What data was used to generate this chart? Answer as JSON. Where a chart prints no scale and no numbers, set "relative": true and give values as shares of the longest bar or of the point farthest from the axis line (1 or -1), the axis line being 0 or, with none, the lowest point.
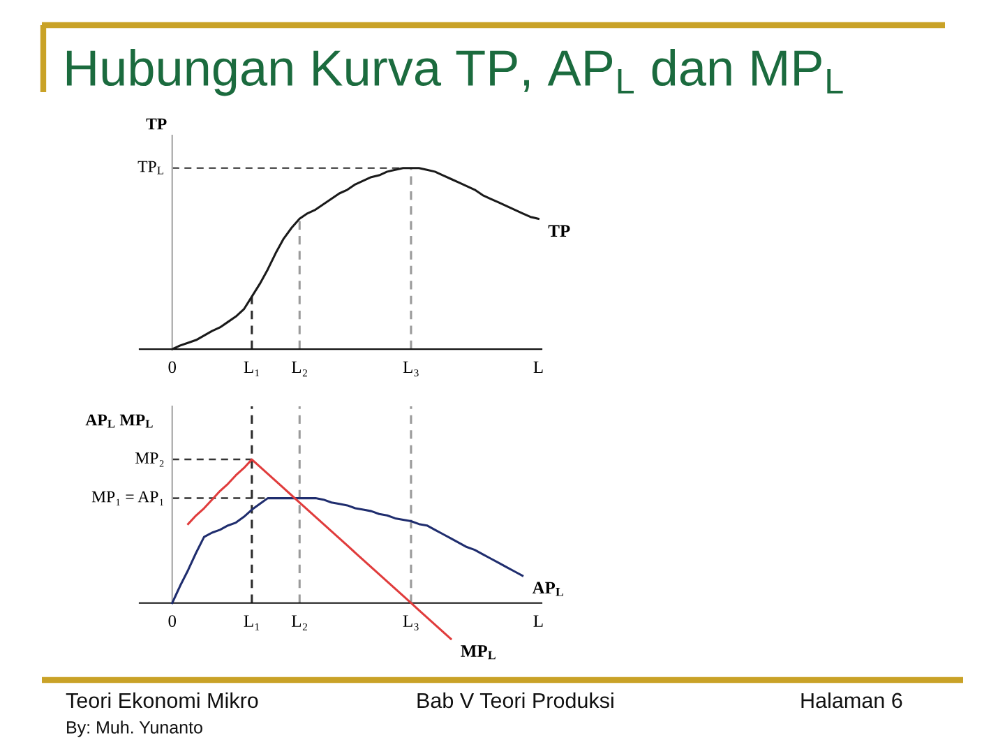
{
  "chart_data": [
    {
      "type": "line",
      "relative": true,
      "title": "Hubungan Kurva TP, AP$_{L}$ dan MP$_{L}$",
      "ylabel": "TP",
      "categories": [
        "0",
        null,
        null,
        null,
        null,
        null,
        null,
        null,
        null,
        null,
        "L₁",
        null,
        null,
        null,
        null,
        null,
        "L₂",
        null,
        null,
        null,
        null,
        null,
        null,
        null,
        null,
        null,
        null,
        null,
        null,
        null,
        "L₃",
        null,
        null,
        null,
        null,
        null,
        null,
        null,
        null,
        null,
        null,
        null,
        null,
        null,
        null,
        null,
        "L"
      ],
      "series": [
        {
          "name": "TP",
          "color": "#1a1a1a",
          "values": [
            0,
            0.02,
            0.035,
            0.05,
            0.075,
            0.1,
            0.12,
            0.15,
            0.18,
            0.22,
            0.29,
            0.36,
            0.44,
            0.53,
            0.61,
            0.67,
            0.72,
            0.75,
            0.77,
            0.8,
            0.83,
            0.86,
            0.88,
            0.91,
            0.93,
            0.95,
            0.96,
            0.98,
            0.99,
            1,
            1,
            1,
            0.99,
            0.98,
            0.96,
            0.94,
            0.92,
            0.9,
            0.88,
            0.85,
            0.83,
            0.81,
            0.79,
            0.77,
            0.75,
            0.73,
            0.72
          ]
        }
      ],
      "ref_lines": [
        {
          "axis": "y",
          "value": 1,
          "label": "TP$_{L}$",
          "color": "#555555",
          "line_style": "dashed"
        },
        {
          "axis": "x",
          "value": "L₁",
          "color": "#2b2b2b",
          "line_style": "dashed"
        },
        {
          "axis": "x",
          "value": "L₂",
          "color": "#9a9a9a",
          "line_style": "dashed"
        },
        {
          "axis": "x",
          "value": "L₃",
          "color": "#9a9a9a",
          "line_style": "dashed"
        }
      ]
    },
    {
      "type": "line",
      "relative": true,
      "ylabel": "AP$_{L}$ MP$_{L}$",
      "categories": [
        "0",
        null,
        null,
        null,
        null,
        null,
        null,
        null,
        null,
        null,
        "L₁",
        null,
        null,
        null,
        null,
        null,
        "L₂",
        null,
        null,
        null,
        null,
        null,
        null,
        null,
        null,
        null,
        null,
        null,
        null,
        null,
        "L₃",
        null,
        null,
        null,
        null,
        null,
        null,
        null,
        null,
        null,
        null,
        null,
        null,
        null,
        null,
        null,
        "L"
      ],
      "series": [
        {
          "name": "AP$_{L}$",
          "color": "#1f2d6e",
          "values": [
            0,
            0.12,
            0.23,
            0.35,
            0.46,
            0.49,
            0.51,
            0.54,
            0.56,
            0.6,
            0.65,
            0.69,
            0.73,
            0.73,
            0.73,
            0.73,
            0.73,
            0.73,
            0.73,
            0.72,
            0.7,
            0.69,
            0.68,
            0.66,
            0.65,
            0.64,
            0.62,
            0.61,
            0.59,
            0.58,
            0.57,
            0.55,
            0.54,
            0.51,
            0.48,
            0.45,
            0.42,
            0.39,
            0.37,
            0.34,
            0.31,
            0.28,
            0.25,
            0.22,
            0.19,
            null,
            null
          ]
        },
        {
          "name": "MP$_{L}$",
          "color": "#e03c3c",
          "values": [
            null,
            null,
            0.55,
            0.61,
            0.66,
            0.72,
            0.78,
            0.83,
            0.89,
            0.94,
            1,
            0.95,
            0.9,
            0.85,
            0.8,
            0.75,
            0.7,
            0.65,
            0.6,
            0.55,
            0.5,
            0.45,
            0.4,
            0.35,
            0.3,
            0.25,
            0.2,
            0.15,
            0.1,
            0.05,
            0,
            -0.05,
            -0.1,
            -0.15,
            -0.2,
            -0.25,
            null,
            null,
            null,
            null,
            null,
            null,
            null,
            null,
            null,
            null,
            null
          ]
        }
      ],
      "ref_lines": [
        {
          "axis": "y",
          "value": 1,
          "label": "MP₂",
          "color": "#333333",
          "line_style": "dashed"
        },
        {
          "axis": "y",
          "value": 0.73,
          "label": "MP₁ = AP₁",
          "color": "#333333",
          "line_style": "dashed"
        },
        {
          "axis": "x",
          "value": "L₁",
          "color": "#2b2b2b",
          "line_style": "dashed"
        },
        {
          "axis": "x",
          "value": "L₂",
          "color": "#9a9a9a",
          "line_style": "dashed"
        },
        {
          "axis": "x",
          "value": "L₃",
          "color": "#9a9a9a",
          "line_style": "dashed"
        }
      ],
      "annotations": [
        "Teori Ekonomi Mikro",
        "By: Muh. Yunanto",
        "Bab V Teori Produksi",
        "Halaman 6"
      ]
    }
  ]
}
